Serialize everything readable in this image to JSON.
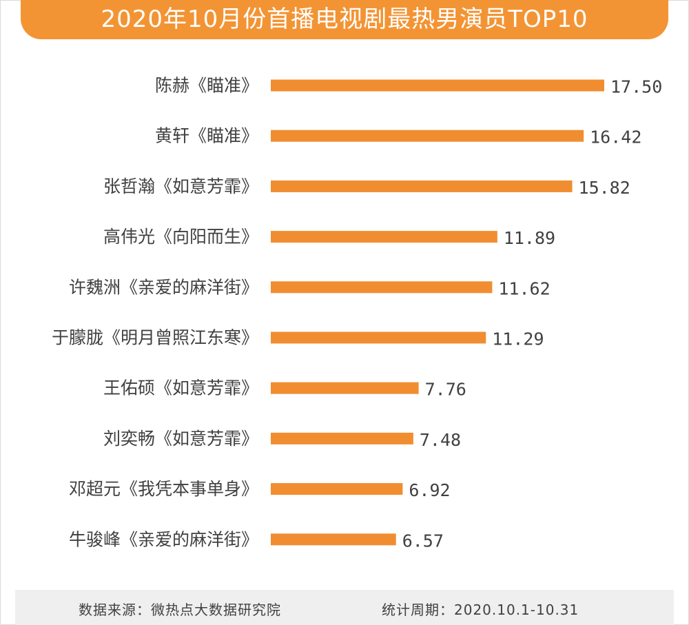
{
  "header": {
    "title": "2020年10月份首播电视剧最热男演员TOP10"
  },
  "footer": {
    "source": "数据来源：微热点大数据研究院",
    "period": "统计周期：2020.10.1-10.31"
  },
  "colors": {
    "accent": "#f39434",
    "bar": "#f18d31",
    "text": "#404040",
    "footer_bg": "#efefef"
  },
  "chart_data": {
    "type": "bar",
    "orientation": "horizontal",
    "title": "2020年10月份首播电视剧最热男演员TOP10",
    "categories": [
      "陈赫《瞄准》",
      "黄轩《瞄准》",
      "张哲瀚《如意芳霏》",
      "高伟光《向阳而生》",
      "许魏洲《亲爱的麻洋街》",
      "于朦胧《明月曾照江东寒》",
      "王佑硕《如意芳霏》",
      "刘奕畅《如意芳霏》",
      "邓超元《我凭本事单身》",
      "牛骏峰《亲爱的麻洋街》"
    ],
    "values": [
      17.5,
      16.42,
      15.82,
      11.89,
      11.62,
      11.29,
      7.76,
      7.48,
      6.92,
      6.57
    ],
    "value_labels": [
      "17.50",
      "16.42",
      "15.82",
      "11.89",
      "11.62",
      "11.29",
      "7.76",
      "7.48",
      "6.92",
      "6.57"
    ],
    "xlim": [
      0,
      17.5
    ],
    "grid": false,
    "legend": "none"
  }
}
